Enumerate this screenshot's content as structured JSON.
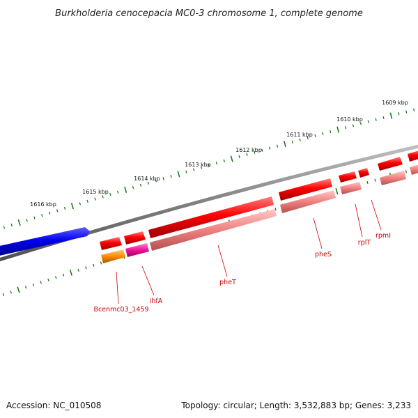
{
  "title": "Burkholderia cenocepacia MC0-3 chromosome 1, complete genome",
  "footer": {
    "accession": "Accession: NC_010508",
    "summary": "Topology: circular; Length: 3,532,883 bp; Genes: 3,233"
  },
  "kbp_markers": [
    "1609 kbp",
    "1610 kbp",
    "1611 kbp",
    "1612 kbp",
    "1613 kbp",
    "1614 kbp",
    "1615 kbp",
    "1616 kbp"
  ],
  "gene_labels": [
    "Bcenmc03_1459",
    "ihfA",
    "pheT",
    "pheS",
    "rplT",
    "rpmI"
  ],
  "colors": {
    "backbone": "#808080",
    "tick_green": "#1a7a1a",
    "cds_red": "#ee0000",
    "cds_red_light": "#f08080",
    "cds_blue": "#0000ee",
    "gene_orange": "#ff8c00",
    "gene_magenta": "#ee1199",
    "label_red": "#cc0000"
  },
  "icons": [
    "forward-arrow-feature",
    "reverse-arrow-feature"
  ]
}
